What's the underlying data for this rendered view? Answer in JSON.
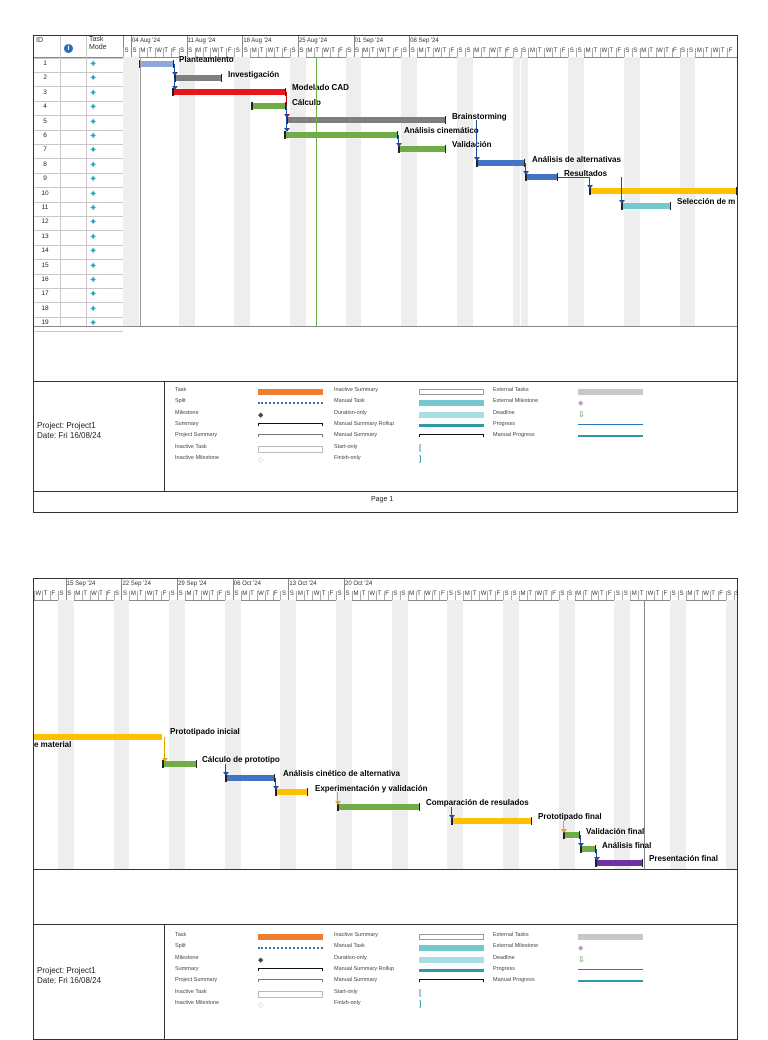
{
  "table_headers": {
    "id": "ID",
    "info_icon": "info-icon",
    "task_mode_line1": "Task",
    "task_mode_line2": "Mode"
  },
  "row_ids": [
    "1",
    "2",
    "3",
    "4",
    "5",
    "6",
    "7",
    "8",
    "9",
    "10",
    "11",
    "12",
    "13",
    "14",
    "15",
    "16",
    "17",
    "18",
    "19"
  ],
  "weekday_letters": [
    "S",
    "M",
    "T",
    "W",
    "T",
    "F",
    "S"
  ],
  "page1_dates": [
    "04 Aug '24",
    "11 Aug '24",
    "18 Aug '24",
    "25 Aug '24",
    "01 Sep '24",
    "08 Sep '24"
  ],
  "page2_dates": [
    "15 Sep '24",
    "22 Sep '24",
    "29 Sep '24",
    "06 Oct '24",
    "13 Oct '24",
    "20 Oct '24"
  ],
  "tasks_page1": [
    {
      "name": "Planteamiento",
      "color": "#8ea9db"
    },
    {
      "name": "Investigación",
      "color": "#7f7f7f"
    },
    {
      "name": "Modelado CAD",
      "color": "#e8161b"
    },
    {
      "name": "Cálculo",
      "color": "#70ad47"
    },
    {
      "name": "Brainstorming",
      "color": "#7f7f7f"
    },
    {
      "name": "Análisis cinemático",
      "color": "#70ad47"
    },
    {
      "name": "Validación",
      "color": "#70ad47"
    },
    {
      "name": "Análisis de alternativas",
      "color": "#4472c4"
    },
    {
      "name": "Resultados",
      "color": "#4472c4"
    },
    {
      "name": "Selección de m",
      "color": "#ffc000"
    },
    {
      "name": "Selección de material (end)",
      "color": "#74c9d0"
    }
  ],
  "continued_label": "e material",
  "tasks_page2": [
    {
      "name": "Prototipado inicial",
      "color": "#ffc000"
    },
    {
      "name": "Cálculo de prototipo",
      "color": "#70ad47"
    },
    {
      "name": "Análisis cinético de alternativa",
      "color": "#4472c4"
    },
    {
      "name": "Experimentación y validación",
      "color": "#ffc000"
    },
    {
      "name": "Comparación de resulados",
      "color": "#70ad47"
    },
    {
      "name": "Prototipado final",
      "color": "#ffc000"
    },
    {
      "name": "Validación final",
      "color": "#70ad47"
    },
    {
      "name": "Análisis final",
      "color": "#70ad47"
    },
    {
      "name": "Presentación final",
      "color": "#7030a0"
    }
  ],
  "project": {
    "name": "Project: Project1",
    "date": "Date: Fri 16/08/24"
  },
  "legend": {
    "col1": [
      "Task",
      "Split",
      "Milestone",
      "Summary",
      "Project Summary",
      "Inactive Task",
      "Inactive Milestone"
    ],
    "col2": [
      "Inactive Summary",
      "Manual Task",
      "Duration-only",
      "Manual Summary Rollup",
      "Manual Summary",
      "Start-only",
      "Finish-only"
    ],
    "col3": [
      "External Tasks",
      "External Milestone",
      "Deadline",
      "Progress",
      "Manual Progress"
    ]
  },
  "page_label": "Page 1",
  "colors": {
    "task": "#ed7d31",
    "manual": "#74c9d0",
    "status_line": "#70ad47",
    "grid": "#c8c8c8"
  }
}
